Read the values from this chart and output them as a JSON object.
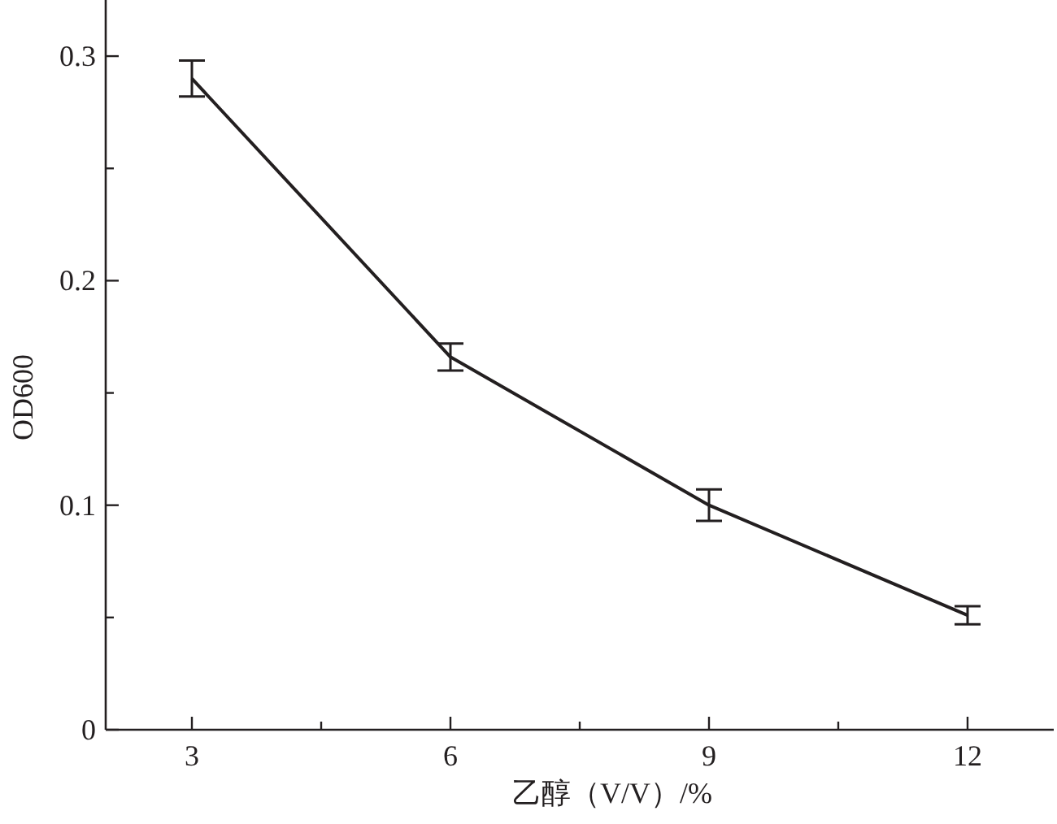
{
  "chart_data": {
    "type": "line",
    "xlabel": "乙醇（V/V）/%",
    "ylabel": "OD600",
    "x": [
      3,
      6,
      9,
      12
    ],
    "series": [
      {
        "color": "#231f20",
        "values": [
          0.29,
          0.166,
          0.1,
          0.051
        ],
        "errors": [
          0.008,
          0.006,
          0.007,
          0.004
        ]
      }
    ],
    "xlim": [
      2,
      13
    ],
    "ylim": [
      0,
      0.325
    ],
    "xticks": [
      3,
      {
        "value": 4.5,
        "label": null
      },
      6,
      {
        "value": 7.5,
        "label": null
      },
      9,
      {
        "value": 10.5,
        "label": null
      },
      12
    ],
    "yticks": [
      0,
      {
        "value": 0.05,
        "label": null
      },
      0.1,
      {
        "value": 0.15,
        "label": null
      },
      0.2,
      {
        "value": 0.25,
        "label": null
      },
      0.3
    ],
    "grid": false,
    "line_style": "solid"
  }
}
